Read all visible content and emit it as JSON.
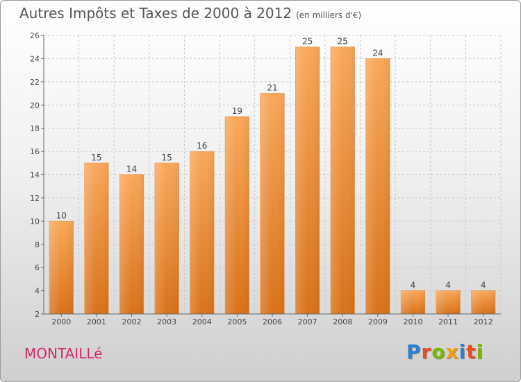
{
  "title": "Autres Impôts et Taxes de 2000 à 2012",
  "subtitle": "(en milliers d'€)",
  "town": "MONTAILLé",
  "brand": {
    "letters": [
      {
        "ch": "P",
        "color": "#2a7fd4"
      },
      {
        "ch": "r",
        "color": "#e84c20"
      },
      {
        "ch": "o",
        "color": "#7ab800"
      },
      {
        "ch": "x",
        "color": "#f0a000"
      },
      {
        "ch": "i",
        "color": "#2a7fd4"
      },
      {
        "ch": "t",
        "color": "#e84c20"
      },
      {
        "ch": "i",
        "color": "#7ab800"
      }
    ]
  },
  "colors": {
    "bar_top": "#f9a85a",
    "bar_bottom": "#d9721a",
    "grid": "#c8c8c8",
    "axis": "#666666",
    "label": "#444444"
  },
  "chart_data": {
    "type": "bar",
    "title": "Autres Impôts et Taxes de 2000 à 2012",
    "categories": [
      "2000",
      "2001",
      "2002",
      "2003",
      "2004",
      "2005",
      "2006",
      "2007",
      "2008",
      "2009",
      "2010",
      "2011",
      "2012"
    ],
    "values": [
      10,
      15,
      14,
      15,
      16,
      19,
      21,
      25,
      25,
      24,
      4,
      4,
      4
    ],
    "ylim": [
      2,
      26
    ],
    "yticks": [
      2,
      4,
      6,
      8,
      10,
      12,
      14,
      16,
      18,
      20,
      22,
      24,
      26
    ],
    "grid": true,
    "grid_style": "dashed-horizontal"
  }
}
